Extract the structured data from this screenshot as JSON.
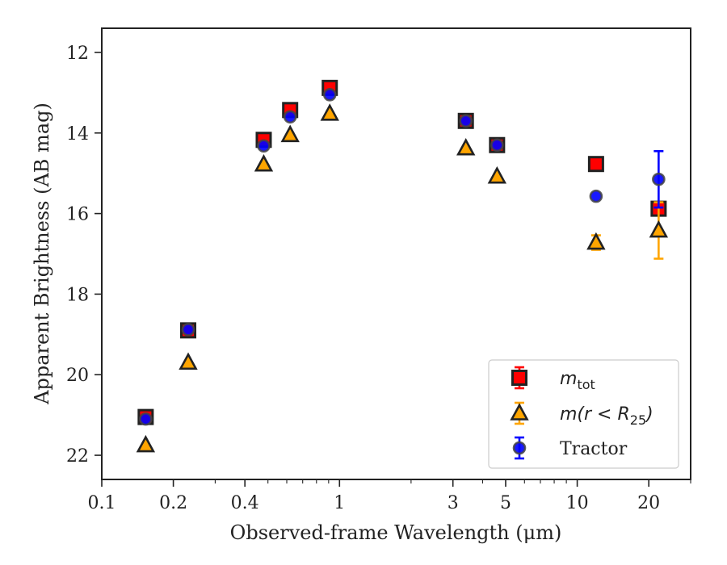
{
  "chart_data": {
    "type": "scatter",
    "xlabel": "Observed-frame Wavelength (μm)",
    "ylabel": "Apparent Brightness (AB mag)",
    "x_scale": "log",
    "xlim": [
      0.1,
      30
    ],
    "ylim": [
      22.6,
      11.4
    ],
    "y_inverted": true,
    "x_ticks": [
      {
        "value": 0.1,
        "label": "0.1"
      },
      {
        "value": 0.2,
        "label": "0.2"
      },
      {
        "value": 0.4,
        "label": "0.4"
      },
      {
        "value": 1,
        "label": "1"
      },
      {
        "value": 3,
        "label": "3"
      },
      {
        "value": 5,
        "label": "5"
      },
      {
        "value": 10,
        "label": "10"
      },
      {
        "value": 20,
        "label": "20"
      }
    ],
    "y_ticks": [
      {
        "value": 12,
        "label": "12"
      },
      {
        "value": 14,
        "label": "14"
      },
      {
        "value": 16,
        "label": "16"
      },
      {
        "value": 18,
        "label": "18"
      },
      {
        "value": 20,
        "label": "20"
      },
      {
        "value": 22,
        "label": "22"
      }
    ],
    "grid": false,
    "legend_position": "bottom-right",
    "series": [
      {
        "name": "m_tot",
        "legend_main": "m",
        "legend_sub": "tot",
        "marker": "square",
        "color": "#ff0000",
        "edge_color": "#222222",
        "points": [
          {
            "x": 0.153,
            "y": 21.05,
            "err": 0.05
          },
          {
            "x": 0.231,
            "y": 18.9,
            "err": 0.03
          },
          {
            "x": 0.48,
            "y": 14.17,
            "err": 0.03
          },
          {
            "x": 0.62,
            "y": 13.43,
            "err": 0.03
          },
          {
            "x": 0.91,
            "y": 12.88,
            "err": 0.03
          },
          {
            "x": 3.4,
            "y": 13.7,
            "err": 0.03
          },
          {
            "x": 4.6,
            "y": 14.3,
            "err": 0.03
          },
          {
            "x": 12.0,
            "y": 14.77,
            "err": 0.05
          },
          {
            "x": 22.0,
            "y": 15.88,
            "err": 0.08
          }
        ]
      },
      {
        "name": "m(r < R_25)",
        "legend_main": "m(r < R",
        "legend_sub": "25",
        "legend_tail": ")",
        "marker": "triangle",
        "color": "#ffa500",
        "edge_color": "#222222",
        "points": [
          {
            "x": 0.153,
            "y": 21.75,
            "err": 0.03
          },
          {
            "x": 0.231,
            "y": 19.7,
            "err": 0.03
          },
          {
            "x": 0.48,
            "y": 14.78,
            "err": 0.03
          },
          {
            "x": 0.62,
            "y": 14.05,
            "err": 0.03
          },
          {
            "x": 0.91,
            "y": 13.52,
            "err": 0.03
          },
          {
            "x": 3.4,
            "y": 14.38,
            "err": 0.03
          },
          {
            "x": 4.6,
            "y": 15.08,
            "err": 0.03
          },
          {
            "x": 12.0,
            "y": 16.72,
            "err": 0.18
          },
          {
            "x": 22.0,
            "y": 16.42,
            "err": 0.7
          }
        ]
      },
      {
        "name": "Tractor",
        "legend_main": "Tractor",
        "marker": "circle",
        "color": "#0000ff",
        "edge_color": "#444444",
        "points": [
          {
            "x": 0.153,
            "y": 21.1,
            "err": 0.03
          },
          {
            "x": 0.231,
            "y": 18.88,
            "err": 0.03
          },
          {
            "x": 0.48,
            "y": 14.32,
            "err": 0.03
          },
          {
            "x": 0.62,
            "y": 13.6,
            "err": 0.03
          },
          {
            "x": 0.91,
            "y": 13.05,
            "err": 0.03
          },
          {
            "x": 3.4,
            "y": 13.7,
            "err": 0.03
          },
          {
            "x": 4.6,
            "y": 14.3,
            "err": 0.03
          },
          {
            "x": 12.0,
            "y": 15.57,
            "err": 0.03
          },
          {
            "x": 22.0,
            "y": 15.15,
            "err": 0.7
          }
        ]
      }
    ]
  }
}
